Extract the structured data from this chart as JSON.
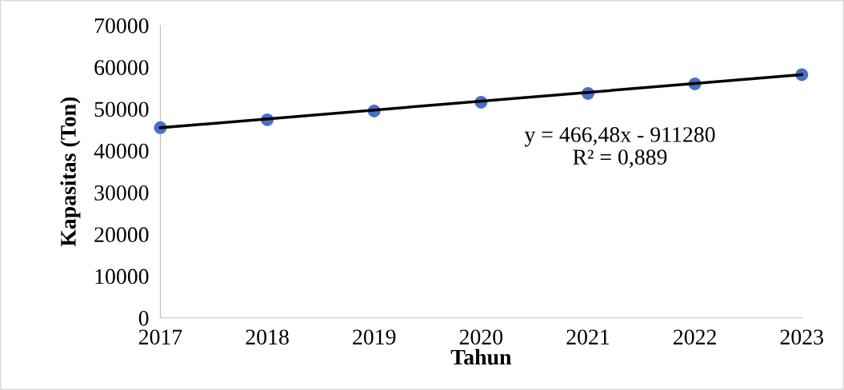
{
  "chart_data": {
    "type": "scatter",
    "xlabel": "Tahun",
    "ylabel": "Kapasitas (Ton)",
    "xlim": [
      2017,
      2023
    ],
    "xticks": [
      2017,
      2018,
      2019,
      2020,
      2021,
      2022,
      2023
    ],
    "ylim": [
      0,
      70000
    ],
    "yticks": [
      0,
      10000,
      20000,
      30000,
      40000,
      50000,
      60000,
      70000
    ],
    "grid": false,
    "legend": false,
    "series": [
      {
        "marker": "circle",
        "color": "#4472c4",
        "x": [
          2017,
          2018,
          2019,
          2020,
          2021,
          2022,
          2023
        ],
        "values": [
          45500,
          47400,
          49500,
          51600,
          53700,
          56000,
          58200
        ]
      },
      {
        "type": "line",
        "color": "#000000",
        "x": [
          2017,
          2023
        ],
        "values": [
          45500,
          58200
        ]
      }
    ],
    "annotations": [
      "y = 466,48x - 911280\nR² = 0,889"
    ]
  }
}
